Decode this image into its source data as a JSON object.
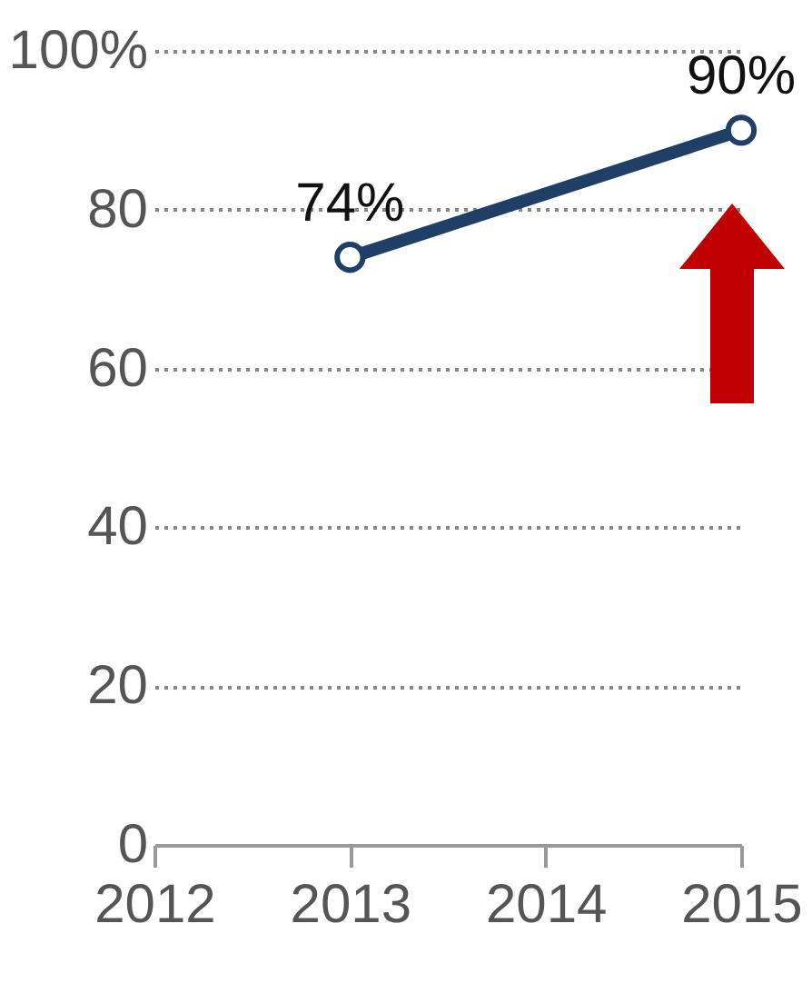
{
  "chart_data": {
    "type": "line",
    "x": [
      2013,
      2015
    ],
    "series": [
      {
        "color": "#1f3f66",
        "values": [
          74,
          90
        ],
        "value_labels": [
          "74%",
          "90%"
        ]
      }
    ],
    "xlim": [
      2012,
      2015
    ],
    "xticks": [
      2012,
      2013,
      2014,
      2015
    ],
    "ylim": [
      0,
      100
    ],
    "yticks": [
      0,
      20,
      40,
      60,
      80,
      {
        "value": 100,
        "label": "100%"
      }
    ],
    "grid": "y",
    "marker": "circle"
  }
}
